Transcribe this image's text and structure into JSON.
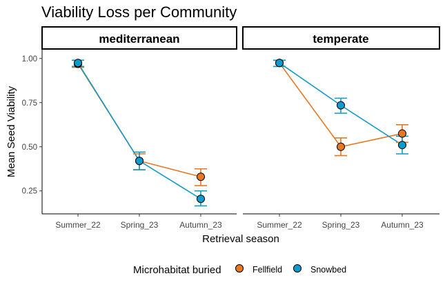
{
  "chart_data": {
    "type": "line",
    "title": "Viability Loss per Community",
    "xlabel": "Retrieval season",
    "ylabel": "Mean Seed Viability",
    "categories": [
      "Summer_22",
      "Spring_23",
      "Autumn_23"
    ],
    "ylim": [
      0.12,
      1.05
    ],
    "yticks": [
      0.25,
      0.5,
      0.75,
      1.0
    ],
    "ytick_labels": [
      "0.25",
      "0.50",
      "0.75",
      "1.00"
    ],
    "grid": false,
    "legend": {
      "title": "Microhabitat buried",
      "placement": "bottom"
    },
    "series_colors": {
      "Fellfield": "#e87722",
      "Snowbed": "#0e9bcc"
    },
    "panels": [
      {
        "name": "mediterranean",
        "series": [
          {
            "name": "Fellfield",
            "values": [
              0.97,
              0.42,
              0.33
            ],
            "err_low": [
              0.95,
              0.37,
              0.28
            ],
            "err_high": [
              0.99,
              0.46,
              0.375
            ]
          },
          {
            "name": "Snowbed",
            "values": [
              0.975,
              0.42,
              0.205
            ],
            "err_low": [
              0.955,
              0.37,
              0.165
            ],
            "err_high": [
              0.99,
              0.47,
              0.25
            ]
          }
        ]
      },
      {
        "name": "temperate",
        "series": [
          {
            "name": "Fellfield",
            "values": [
              0.975,
              0.5,
              0.575
            ],
            "err_low": [
              0.955,
              0.45,
              0.525
            ],
            "err_high": [
              0.99,
              0.55,
              0.625
            ]
          },
          {
            "name": "Snowbed",
            "values": [
              0.975,
              0.735,
              0.51
            ],
            "err_low": [
              0.955,
              0.69,
              0.46
            ],
            "err_high": [
              0.99,
              0.775,
              0.56
            ]
          }
        ]
      }
    ]
  }
}
